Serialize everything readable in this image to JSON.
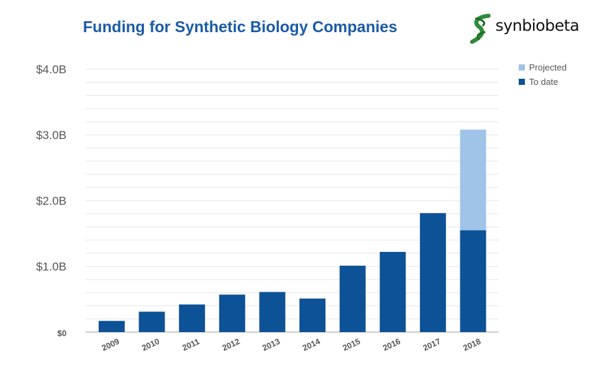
{
  "title": "Funding for Synthetic Biology Companies",
  "logo": {
    "text": "synbiobeta",
    "icon": "synbiobeta-helix-logo",
    "icon_color": "#2e8b3a"
  },
  "colors": {
    "title": "#1a5ba6",
    "to_date": "#0d5297",
    "projected": "#a0c4e8",
    "gridline": "#e6e6e6"
  },
  "chart_data": {
    "type": "bar",
    "stacked": true,
    "categories": [
      "2009",
      "2010",
      "2011",
      "2012",
      "2013",
      "2014",
      "2015",
      "2016",
      "2017",
      "2018"
    ],
    "series": [
      {
        "name": "To date",
        "values": [
          0.17,
          0.31,
          0.42,
          0.57,
          0.61,
          0.51,
          1.01,
          1.22,
          1.81,
          1.55
        ]
      },
      {
        "name": "Projected",
        "values": [
          0,
          0,
          0,
          0,
          0,
          0,
          0,
          0,
          0,
          1.53
        ]
      }
    ],
    "ytick_labels": [
      "$0",
      "$1.0B",
      "$2.0B",
      "$3.0B",
      "$4.0B"
    ],
    "yticks": [
      0,
      1,
      2,
      3,
      4
    ],
    "ylim": [
      0,
      4
    ],
    "grid": true,
    "legend_position": "top-right",
    "legend_order": [
      "Projected",
      "To date"
    ]
  }
}
